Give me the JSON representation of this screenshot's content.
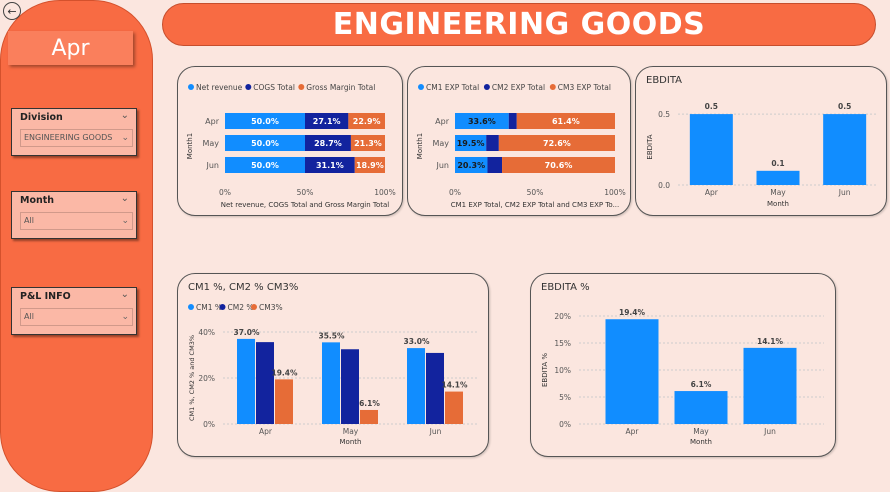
{
  "header": {
    "title": "ENGINEERING GOODS"
  },
  "sidebar": {
    "month_label": "Apr",
    "slicers": [
      {
        "title": "Division",
        "value": "ENGINEERING GOODS"
      },
      {
        "title": "Month",
        "value": "All"
      },
      {
        "title": "P&L INFO",
        "value": "All"
      }
    ]
  },
  "colors": {
    "accent": "#f86b43",
    "blue": "#118dff",
    "navy": "#12239e",
    "orange": "#e66c37",
    "bg": "#fbe6df"
  },
  "icons": {
    "back": "back-arrow-icon",
    "chevron": "chevron-down-icon"
  },
  "chart_data": [
    {
      "id": "rev_cogs",
      "type": "bar",
      "orientation": "horizontal-stacked-100",
      "legend": [
        "Net revenue",
        "COGS Total",
        "Gross Margin Total"
      ],
      "ylabel": "Month1",
      "xlabel": "Net revenue, COGS Total and Gross Margin Total",
      "x_ticks": [
        "0%",
        "50%",
        "100%"
      ],
      "categories": [
        "Apr",
        "May",
        "Jun"
      ],
      "series": [
        {
          "name": "Net revenue",
          "values": [
            50.0,
            50.0,
            50.0
          ],
          "labels": [
            "50.0%",
            "50.0%",
            "50.0%"
          ]
        },
        {
          "name": "COGS Total",
          "values": [
            27.1,
            28.7,
            31.1
          ],
          "labels": [
            "27.1%",
            "28.7%",
            "31.1%"
          ]
        },
        {
          "name": "Gross Margin Total",
          "values": [
            22.9,
            21.3,
            18.9
          ],
          "labels": [
            "22.9%",
            "21.3%",
            "18.9%"
          ]
        }
      ]
    },
    {
      "id": "cm_exp",
      "type": "bar",
      "orientation": "horizontal-stacked-100",
      "legend": [
        "CM1 EXP Total",
        "CM2 EXP Total",
        "CM3 EXP Total"
      ],
      "ylabel": "Month1",
      "xlabel": "CM1 EXP Total, CM2 EXP Total and CM3 EXP To...",
      "x_ticks": [
        "0%",
        "50%",
        "100%"
      ],
      "categories": [
        "Apr",
        "May",
        "Jun"
      ],
      "series": [
        {
          "name": "CM1 EXP Total",
          "values": [
            33.6,
            19.5,
            20.3
          ],
          "labels": [
            "33.6%",
            "19.5%",
            "20.3%"
          ]
        },
        {
          "name": "CM2 EXP Total",
          "values": [
            5.0,
            7.9,
            9.1
          ],
          "labels": [
            "",
            "",
            ""
          ]
        },
        {
          "name": "CM3 EXP Total",
          "values": [
            61.4,
            72.6,
            70.6
          ],
          "labels": [
            "61.4%",
            "72.6%",
            "70.6%"
          ]
        }
      ]
    },
    {
      "id": "ebdita",
      "type": "bar",
      "title": "EBDITA",
      "ylabel": "EBDITA",
      "xlabel": "Month",
      "y_ticks": [
        "0.5",
        "0.0"
      ],
      "categories": [
        "Apr",
        "May",
        "Jun"
      ],
      "values": [
        0.5,
        0.1,
        0.5
      ],
      "ylim": [
        0,
        0.55
      ]
    },
    {
      "id": "cm_pct",
      "type": "bar",
      "title": "CM1 %, CM2 % CM3%",
      "legend": [
        "CM1 %",
        "CM2 %",
        "CM3%"
      ],
      "ylabel": "CM1 %, CM2 % and CM3%",
      "xlabel": "Month",
      "y_ticks": [
        "40%",
        "20%",
        "0%"
      ],
      "categories": [
        "Apr",
        "May",
        "Jun"
      ],
      "series": [
        {
          "name": "CM1 %",
          "values": [
            37.0,
            35.5,
            33.0
          ],
          "labels": [
            "37.0%",
            "35.5%",
            "33.0%"
          ]
        },
        {
          "name": "CM2 %",
          "values": [
            35.6,
            32.5,
            30.9
          ],
          "labels": [
            "",
            "",
            ""
          ]
        },
        {
          "name": "CM3%",
          "values": [
            19.4,
            6.1,
            14.1
          ],
          "labels": [
            "19.4%",
            "6.1%",
            "14.1%"
          ]
        }
      ],
      "ylim": [
        0,
        40
      ]
    },
    {
      "id": "ebdita_pct",
      "type": "bar",
      "title": "EBDITA %",
      "ylabel": "EBDITA %",
      "xlabel": "Month",
      "y_ticks": [
        "20%",
        "15%",
        "10%",
        "5%",
        "0%"
      ],
      "categories": [
        "Apr",
        "May",
        "Jun"
      ],
      "values": [
        19.4,
        6.1,
        14.1
      ],
      "labels": [
        "19.4%",
        "6.1%",
        "14.1%"
      ],
      "ylim": [
        0,
        20
      ]
    }
  ]
}
